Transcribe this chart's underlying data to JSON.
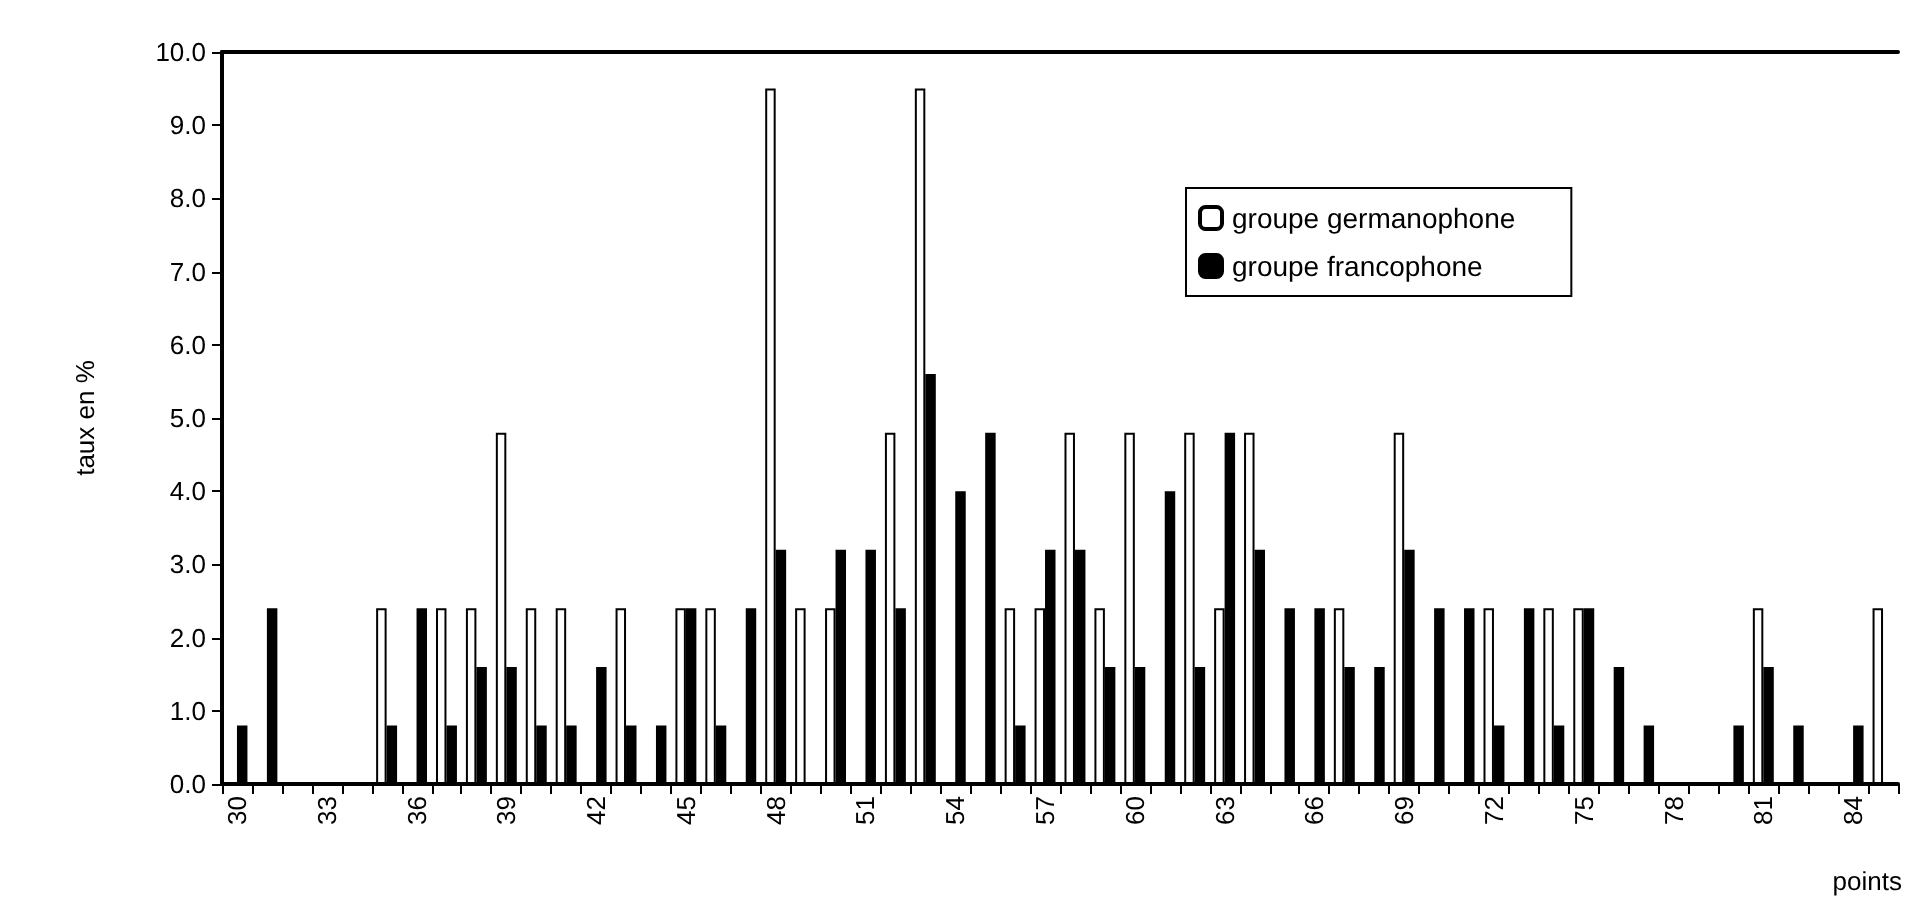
{
  "chart_data": {
    "type": "bar",
    "xlabel": "points",
    "ylabel": "taux en %",
    "categories": [
      "30",
      null,
      null,
      "33",
      null,
      null,
      "36",
      null,
      null,
      "39",
      null,
      null,
      "42",
      null,
      null,
      "45",
      null,
      null,
      "48",
      null,
      null,
      "51",
      null,
      null,
      "54",
      null,
      null,
      "57",
      null,
      null,
      "60",
      null,
      null,
      "63",
      null,
      null,
      "66",
      null,
      null,
      "69",
      null,
      null,
      "72",
      null,
      null,
      "75",
      null,
      null,
      "78",
      null,
      null,
      "81",
      null,
      null,
      "84",
      null
    ],
    "series": [
      {
        "name": "groupe germanophone",
        "color": "#ffffff",
        "values": [
          0,
          0,
          0,
          0,
          0,
          2.4,
          0,
          2.4,
          2.4,
          4.8,
          2.4,
          2.4,
          0,
          2.4,
          0,
          2.4,
          2.4,
          0,
          9.5,
          2.4,
          2.4,
          0,
          4.8,
          9.5,
          0,
          0,
          2.4,
          2.4,
          4.8,
          2.4,
          4.8,
          0,
          4.8,
          2.4,
          4.8,
          0,
          0,
          2.4,
          0,
          4.8,
          0,
          0,
          2.4,
          0,
          2.4,
          2.4,
          0,
          0,
          0,
          0,
          0,
          2.4,
          0,
          0,
          0,
          2.4
        ]
      },
      {
        "name": "groupe francophone",
        "color": "#000000",
        "values": [
          0.8,
          2.4,
          0,
          0,
          0,
          0.8,
          2.4,
          0.8,
          1.6,
          1.6,
          0.8,
          0.8,
          1.6,
          0.8,
          0.8,
          2.4,
          0.8,
          2.4,
          3.2,
          0,
          3.2,
          3.2,
          2.4,
          5.6,
          4.0,
          4.8,
          0.8,
          3.2,
          3.2,
          1.6,
          1.6,
          4.0,
          1.6,
          4.8,
          3.2,
          2.4,
          2.4,
          1.6,
          1.6,
          3.2,
          2.4,
          2.4,
          0.8,
          2.4,
          0.8,
          2.4,
          1.6,
          0.8,
          0,
          0,
          0.8,
          1.6,
          0.8,
          0,
          0.8,
          0
        ]
      }
    ],
    "ylim": [
      0,
      10
    ],
    "yticks": [
      {
        "value": 0,
        "label": "0.0"
      },
      {
        "value": 1,
        "label": "1.0"
      },
      {
        "value": 2,
        "label": "2.0"
      },
      {
        "value": 3,
        "label": "3.0"
      },
      {
        "value": 4,
        "label": "4.0"
      },
      {
        "value": 5,
        "label": "5.0"
      },
      {
        "value": 6,
        "label": "6.0"
      },
      {
        "value": 7,
        "label": "7.0"
      },
      {
        "value": 8,
        "label": "8.0"
      },
      {
        "value": 9,
        "label": "9.0"
      },
      {
        "value": 10,
        "label": "10.0"
      }
    ],
    "grid": false,
    "legend": "top right"
  }
}
